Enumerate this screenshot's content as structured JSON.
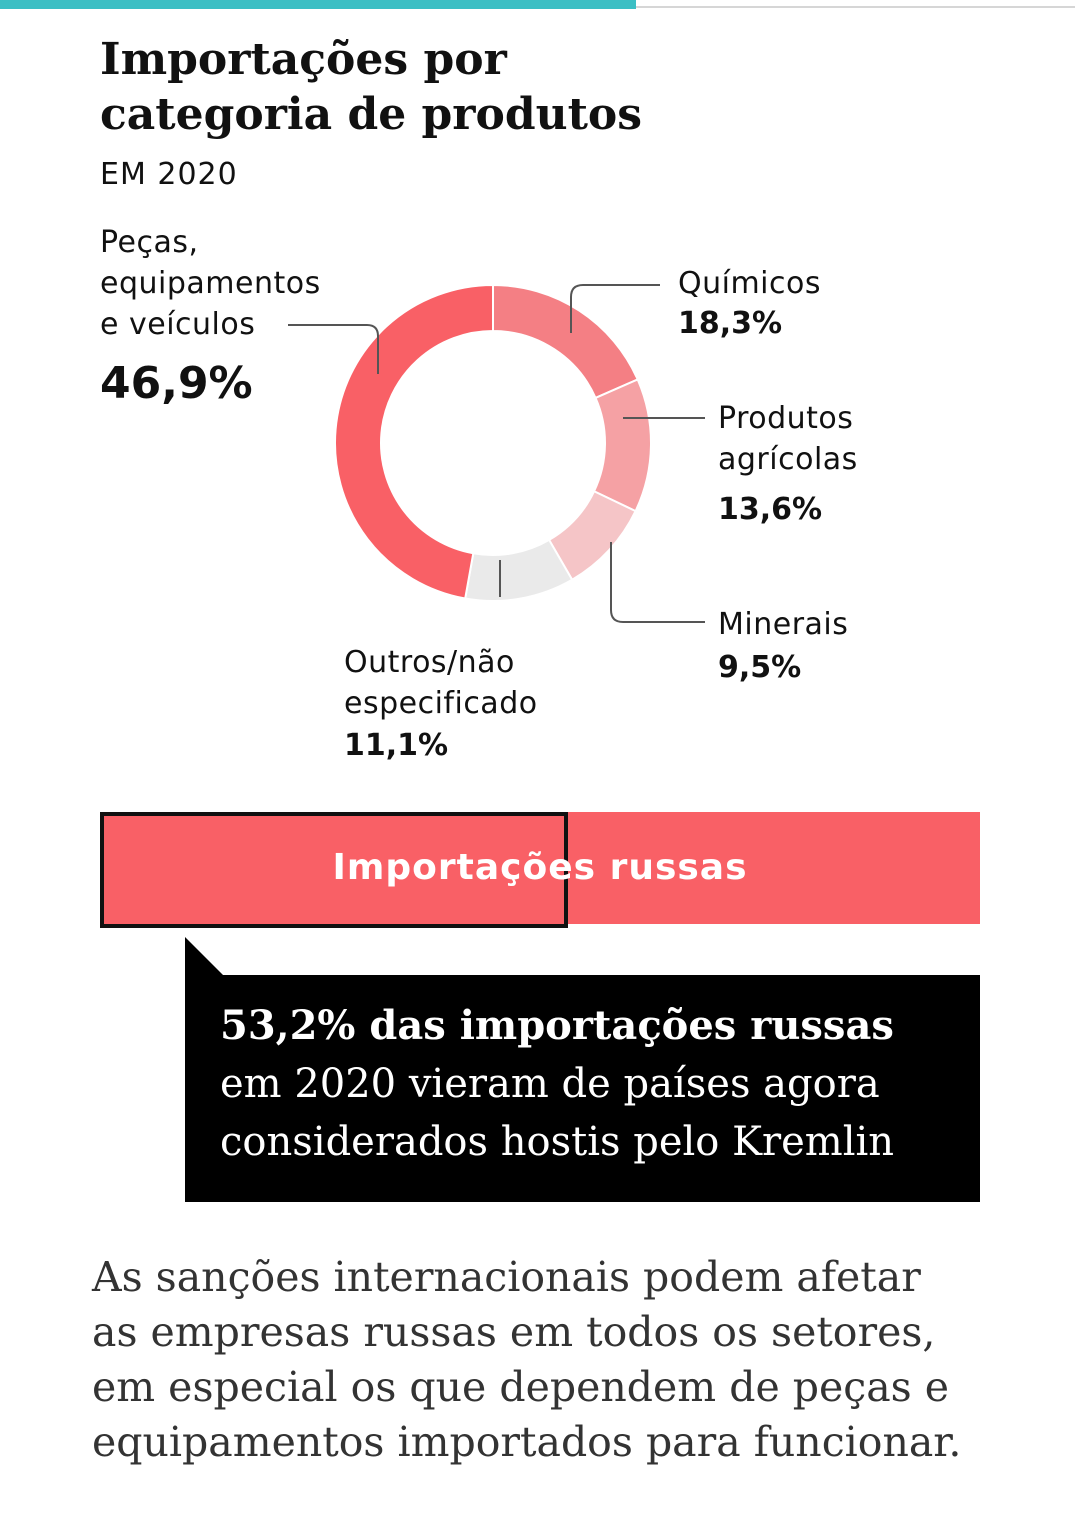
{
  "header": {
    "progress_fraction": 0.592
  },
  "chart_data": {
    "type": "pie",
    "title": "Importações por categoria de produtos",
    "subtitle": "EM 2020",
    "slices": [
      {
        "label": "Químicos",
        "value": 18.3,
        "value_text": "18,3%",
        "color": "#f47f84"
      },
      {
        "label": "Produtos agrícolas",
        "value": 13.6,
        "value_text": "13,6%",
        "color": "#f5a1a4"
      },
      {
        "label": "Minerais",
        "value": 9.5,
        "value_text": "9,5%",
        "color": "#f5c5c7"
      },
      {
        "label": "Outros/não especificado",
        "value": 11.1,
        "value_text": "11,1%",
        "color": "#eaeaea"
      },
      {
        "label": "Peças, equipamentos e veículos",
        "value": 46.9,
        "value_text": "46,9%",
        "color": "#f96066"
      }
    ]
  },
  "labels": {
    "pecas": [
      "Peças,",
      "equipamentos",
      "e veículos"
    ],
    "quimicos": [
      "Químicos"
    ],
    "agricolas": [
      "Produtos",
      "agrícolas"
    ],
    "minerais": [
      "Minerais"
    ],
    "outros": [
      "Outros/não",
      "especificado"
    ]
  },
  "bar": {
    "label": "Importações russas",
    "hostile_share": 0.532,
    "color": "#f96066"
  },
  "callout": {
    "bold_line": "53,2% das importações russas",
    "text": "em 2020 vieram de países agora considerados hostis pelo Kremlin"
  },
  "body_text": "As sanções internacionais podem afetar as empresas russas em todos os setores, em especial os que dependem de peças e equipamentos importados para funcionar."
}
